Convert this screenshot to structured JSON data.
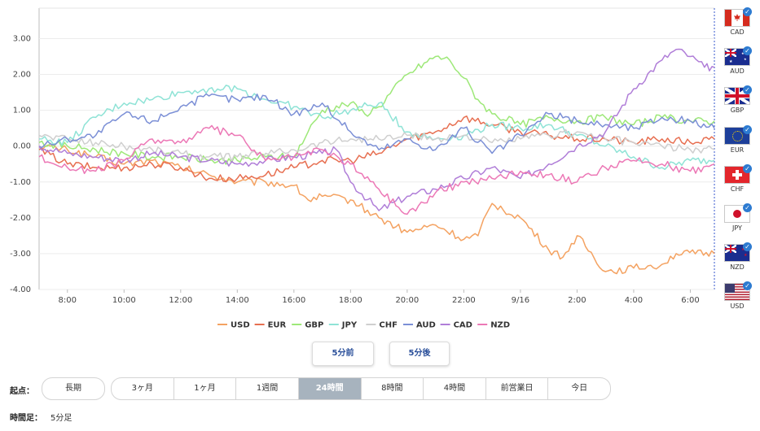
{
  "chart_data": {
    "type": "line",
    "y_ticks": [
      "3.00",
      "2.00",
      "1.00",
      "0.00",
      "-1.00",
      "-2.00",
      "-3.00",
      "-4.00"
    ],
    "ylim": [
      -4.0,
      3.85
    ],
    "x_ticks": [
      "8:00",
      "10:00",
      "12:00",
      "14:00",
      "16:00",
      "18:00",
      "20:00",
      "22:00",
      "9/16",
      "2:00",
      "4:00",
      "6:00"
    ],
    "xlim": [
      7.0,
      30.85
    ],
    "x_tick_positions": [
      8,
      10,
      12,
      14,
      16,
      18,
      20,
      22,
      24,
      26,
      28,
      30
    ],
    "grid": "horizontal",
    "legend_position": "bottom",
    "series": [
      {
        "name": "USD",
        "color": "#f4a261",
        "points": [
          [
            7,
            0
          ],
          [
            8,
            -0.1
          ],
          [
            9,
            -0.3
          ],
          [
            10,
            -0.5
          ],
          [
            11,
            -0.4
          ],
          [
            12,
            -0.6
          ],
          [
            13,
            -0.8
          ],
          [
            14,
            -1.0
          ],
          [
            15,
            -1.0
          ],
          [
            16,
            -1.1
          ],
          [
            16.5,
            -1.5
          ],
          [
            17,
            -1.4
          ],
          [
            18,
            -1.5
          ],
          [
            19,
            -2.0
          ],
          [
            20,
            -2.4
          ],
          [
            21,
            -2.2
          ],
          [
            22,
            -2.6
          ],
          [
            22.5,
            -2.5
          ],
          [
            23,
            -1.6
          ],
          [
            24,
            -2.0
          ],
          [
            25,
            -2.9
          ],
          [
            25.5,
            -3.1
          ],
          [
            26,
            -2.5
          ],
          [
            27,
            -3.5
          ],
          [
            28,
            -3.4
          ],
          [
            29,
            -3.3
          ],
          [
            29.5,
            -3.0
          ],
          [
            30.85,
            -3.0
          ]
        ]
      },
      {
        "name": "EUR",
        "color": "#e76f51",
        "points": [
          [
            7,
            -0.1
          ],
          [
            8,
            -0.5
          ],
          [
            9,
            -0.6
          ],
          [
            10,
            -0.6
          ],
          [
            11,
            -0.5
          ],
          [
            12,
            -0.6
          ],
          [
            13,
            -0.9
          ],
          [
            14,
            -0.9
          ],
          [
            15,
            -0.8
          ],
          [
            16,
            -0.6
          ],
          [
            17,
            -0.4
          ],
          [
            18,
            -0.4
          ],
          [
            19,
            -0.2
          ],
          [
            20,
            0.2
          ],
          [
            21,
            0.4
          ],
          [
            22,
            0.8
          ],
          [
            23,
            0.6
          ],
          [
            24,
            0.4
          ],
          [
            25,
            0.3
          ],
          [
            26,
            0.2
          ],
          [
            27,
            0.2
          ],
          [
            28,
            0.1
          ],
          [
            29,
            0.2
          ],
          [
            30,
            0.1
          ],
          [
            30.85,
            0.2
          ]
        ]
      },
      {
        "name": "GBP",
        "color": "#9de878",
        "points": [
          [
            7,
            0.1
          ],
          [
            8,
            0.0
          ],
          [
            9,
            -0.1
          ],
          [
            10,
            -0.2
          ],
          [
            11,
            -0.3
          ],
          [
            12,
            -0.3
          ],
          [
            13,
            -0.4
          ],
          [
            14,
            -0.4
          ],
          [
            15,
            -0.3
          ],
          [
            16,
            -0.3
          ],
          [
            16.5,
            0.4
          ],
          [
            17,
            1.0
          ],
          [
            18,
            1.2
          ],
          [
            18.5,
            0.9
          ],
          [
            19,
            1.1
          ],
          [
            20,
            2.0
          ],
          [
            21,
            2.5
          ],
          [
            21.5,
            2.4
          ],
          [
            22,
            1.9
          ],
          [
            22.5,
            1.3
          ],
          [
            23,
            0.9
          ],
          [
            24,
            0.6
          ],
          [
            25,
            0.8
          ],
          [
            26,
            0.7
          ],
          [
            27,
            0.8
          ],
          [
            28,
            0.6
          ],
          [
            29,
            0.8
          ],
          [
            30,
            0.7
          ],
          [
            30.85,
            0.7
          ]
        ]
      },
      {
        "name": "JPY",
        "color": "#8fe3d6",
        "points": [
          [
            7,
            0.2
          ],
          [
            8,
            0.1
          ],
          [
            9,
            0.8
          ],
          [
            10,
            1.2
          ],
          [
            11,
            1.3
          ],
          [
            12,
            1.5
          ],
          [
            13,
            1.6
          ],
          [
            14,
            1.6
          ],
          [
            15,
            1.3
          ],
          [
            16,
            1.1
          ],
          [
            17,
            0.8
          ],
          [
            18,
            1.0
          ],
          [
            19,
            1.2
          ],
          [
            20,
            0.4
          ],
          [
            21,
            0.2
          ],
          [
            22,
            0.3
          ],
          [
            23,
            0.6
          ],
          [
            24,
            0.5
          ],
          [
            25,
            0.6
          ],
          [
            26,
            0.3
          ],
          [
            27,
            0.0
          ],
          [
            28,
            -0.3
          ],
          [
            29,
            -0.6
          ],
          [
            30,
            -0.4
          ],
          [
            30.85,
            -0.4
          ]
        ]
      },
      {
        "name": "CHF",
        "color": "#cfcfcf",
        "points": [
          [
            7,
            0.3
          ],
          [
            8,
            0.2
          ],
          [
            9,
            0.1
          ],
          [
            10,
            0.0
          ],
          [
            11,
            -0.1
          ],
          [
            12,
            -0.2
          ],
          [
            13,
            -0.3
          ],
          [
            14,
            -0.3
          ],
          [
            15,
            -0.2
          ],
          [
            16,
            -0.1
          ],
          [
            17,
            0.1
          ],
          [
            18,
            0.2
          ],
          [
            19,
            0.2
          ],
          [
            20,
            0.3
          ],
          [
            21,
            0.2
          ],
          [
            22,
            0.3
          ],
          [
            23,
            0.1
          ],
          [
            24,
            0.2
          ],
          [
            25,
            0.3
          ],
          [
            26,
            0.4
          ],
          [
            27,
            0.2
          ],
          [
            28,
            0.1
          ],
          [
            29,
            0.0
          ],
          [
            30,
            -0.1
          ],
          [
            30.85,
            -0.1
          ]
        ]
      },
      {
        "name": "AUD",
        "color": "#7b8fd6",
        "points": [
          [
            7,
            0.0
          ],
          [
            8,
            0.2
          ],
          [
            9,
            0.3
          ],
          [
            10,
            0.9
          ],
          [
            11,
            0.7
          ],
          [
            12,
            1.1
          ],
          [
            13,
            1.4
          ],
          [
            14,
            1.3
          ],
          [
            15,
            1.4
          ],
          [
            16,
            0.9
          ],
          [
            17,
            1.2
          ],
          [
            18,
            0.4
          ],
          [
            19,
            -0.1
          ],
          [
            20,
            0.2
          ],
          [
            21,
            -0.1
          ],
          [
            22,
            0.5
          ],
          [
            23,
            -0.2
          ],
          [
            24,
            0.3
          ],
          [
            25,
            0.9
          ],
          [
            26,
            0.7
          ],
          [
            27,
            0.6
          ],
          [
            28,
            0.5
          ],
          [
            29,
            0.8
          ],
          [
            30,
            0.7
          ],
          [
            30.85,
            0.5
          ]
        ]
      },
      {
        "name": "CAD",
        "color": "#b07ed8",
        "points": [
          [
            7,
            0.0
          ],
          [
            8,
            -0.2
          ],
          [
            9,
            -0.3
          ],
          [
            10,
            -0.4
          ],
          [
            11,
            -0.2
          ],
          [
            12,
            -0.3
          ],
          [
            13,
            -0.4
          ],
          [
            14,
            -0.5
          ],
          [
            15,
            -0.4
          ],
          [
            16,
            -0.3
          ],
          [
            17,
            -0.2
          ],
          [
            17.5,
            -0.1
          ],
          [
            18,
            -1.0
          ],
          [
            19,
            -1.8
          ],
          [
            20,
            -1.4
          ],
          [
            21,
            -1.2
          ],
          [
            22,
            -0.9
          ],
          [
            23,
            -0.6
          ],
          [
            24,
            -0.9
          ],
          [
            25,
            -0.5
          ],
          [
            26,
            0.0
          ],
          [
            27,
            0.4
          ],
          [
            28,
            1.6
          ],
          [
            29,
            2.4
          ],
          [
            29.5,
            2.7
          ],
          [
            30,
            2.5
          ],
          [
            30.5,
            2.2
          ],
          [
            30.85,
            2.2
          ]
        ]
      },
      {
        "name": "NZD",
        "color": "#ec78b6",
        "points": [
          [
            7,
            -0.3
          ],
          [
            8,
            -0.6
          ],
          [
            9,
            -0.7
          ],
          [
            10,
            -0.4
          ],
          [
            11,
            0.2
          ],
          [
            12,
            0.1
          ],
          [
            13,
            0.5
          ],
          [
            14,
            0.3
          ],
          [
            15,
            -0.4
          ],
          [
            16,
            -0.3
          ],
          [
            17,
            -0.1
          ],
          [
            18,
            -0.5
          ],
          [
            19,
            -1.2
          ],
          [
            20,
            -1.9
          ],
          [
            21,
            -1.3
          ],
          [
            22,
            -1.0
          ],
          [
            23,
            -0.9
          ],
          [
            24,
            -0.7
          ],
          [
            25,
            -0.8
          ],
          [
            26,
            -1.0
          ],
          [
            27,
            -0.6
          ],
          [
            28,
            -0.4
          ],
          [
            29,
            -0.5
          ],
          [
            30,
            -0.7
          ],
          [
            30.85,
            -0.5
          ]
        ]
      }
    ]
  },
  "currency_selector": [
    {
      "code": "CAD",
      "flag": "ca",
      "checked": true
    },
    {
      "code": "AUD",
      "flag": "au",
      "checked": true
    },
    {
      "code": "GBP",
      "flag": "gb",
      "checked": true
    },
    {
      "code": "EUR",
      "flag": "eu",
      "checked": true
    },
    {
      "code": "CHF",
      "flag": "ch",
      "checked": true
    },
    {
      "code": "JPY",
      "flag": "jp",
      "checked": true
    },
    {
      "code": "NZD",
      "flag": "nz",
      "checked": true
    },
    {
      "code": "USD",
      "flag": "us",
      "checked": true
    }
  ],
  "nav": {
    "prev_label": "5分前",
    "next_label": "5分後"
  },
  "start": {
    "label": "起点：",
    "long_label": "長期",
    "ranges": [
      "3ヶ月",
      "1ヶ月",
      "1週間",
      "24時間",
      "8時間",
      "4時間",
      "前営業日",
      "今日"
    ],
    "selected": "24時間"
  },
  "interval": {
    "label": "時間足：",
    "value": "5分足"
  }
}
